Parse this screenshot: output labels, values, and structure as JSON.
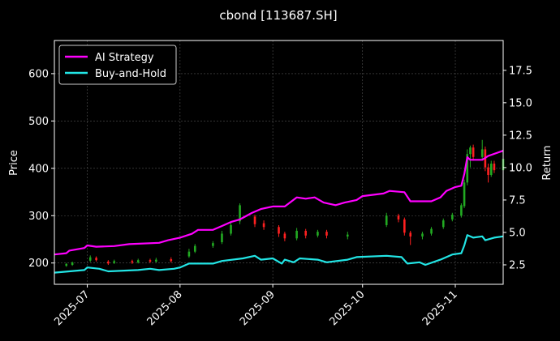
{
  "chart_data": {
    "type": "line",
    "title": "cbond [113687.SH]",
    "ylabel_left": "Price",
    "ylabel_right": "Return",
    "grid": true,
    "legend_position": "top-left",
    "x_range": [
      "2025-06-20",
      "2025-11-17"
    ],
    "x_ticks": [
      "2025-07",
      "2025-08",
      "2025-09",
      "2025-10",
      "2025-11"
    ],
    "x_tick_dates": [
      "2025-07-01",
      "2025-08-01",
      "2025-09-01",
      "2025-10-01",
      "2025-11-01"
    ],
    "y_left": {
      "range": [
        155,
        670
      ],
      "ticks": [
        200,
        300,
        400,
        500,
        600
      ]
    },
    "y_right": {
      "range": [
        1.0,
        19.8
      ],
      "ticks": [
        "2.5",
        "5.0",
        "7.5",
        "10.0",
        "12.5",
        "15.0",
        "17.5"
      ]
    },
    "series": [
      {
        "name": "AI Strategy",
        "color": "#ff00ff",
        "axis": "right",
        "points": [
          [
            "2025-06-20",
            3.3
          ],
          [
            "2025-06-24",
            3.4
          ],
          [
            "2025-06-25",
            3.6
          ],
          [
            "2025-06-30",
            3.8
          ],
          [
            "2025-07-01",
            4.0
          ],
          [
            "2025-07-04",
            3.9
          ],
          [
            "2025-07-10",
            3.95
          ],
          [
            "2025-07-15",
            4.1
          ],
          [
            "2025-07-25",
            4.2
          ],
          [
            "2025-07-28",
            4.4
          ],
          [
            "2025-08-01",
            4.6
          ],
          [
            "2025-08-05",
            4.9
          ],
          [
            "2025-08-07",
            5.2
          ],
          [
            "2025-08-12",
            5.2
          ],
          [
            "2025-08-15",
            5.5
          ],
          [
            "2025-08-18",
            5.8
          ],
          [
            "2025-08-21",
            6.0
          ],
          [
            "2025-08-25",
            6.5
          ],
          [
            "2025-08-28",
            6.8
          ],
          [
            "2025-09-01",
            7.0
          ],
          [
            "2025-09-05",
            7.0
          ],
          [
            "2025-09-09",
            7.7
          ],
          [
            "2025-09-12",
            7.6
          ],
          [
            "2025-09-15",
            7.7
          ],
          [
            "2025-09-18",
            7.3
          ],
          [
            "2025-09-22",
            7.1
          ],
          [
            "2025-09-25",
            7.3
          ],
          [
            "2025-09-29",
            7.5
          ],
          [
            "2025-10-01",
            7.8
          ],
          [
            "2025-10-08",
            8.0
          ],
          [
            "2025-10-10",
            8.2
          ],
          [
            "2025-10-15",
            8.1
          ],
          [
            "2025-10-17",
            7.4
          ],
          [
            "2025-10-24",
            7.4
          ],
          [
            "2025-10-27",
            7.7
          ],
          [
            "2025-10-29",
            8.2
          ],
          [
            "2025-11-01",
            8.5
          ],
          [
            "2025-11-03",
            8.6
          ],
          [
            "2025-11-04",
            9.5
          ],
          [
            "2025-11-05",
            10.8
          ],
          [
            "2025-11-06",
            10.6
          ],
          [
            "2025-11-10",
            10.6
          ],
          [
            "2025-11-12",
            10.9
          ],
          [
            "2025-11-17",
            11.3
          ]
        ]
      },
      {
        "name": "Buy-and-Hold",
        "color": "#22e5e5",
        "axis": "right",
        "points": [
          [
            "2025-06-20",
            1.9
          ],
          [
            "2025-06-25",
            2.0
          ],
          [
            "2025-06-30",
            2.1
          ],
          [
            "2025-07-01",
            2.3
          ],
          [
            "2025-07-05",
            2.2
          ],
          [
            "2025-07-08",
            2.0
          ],
          [
            "2025-07-18",
            2.1
          ],
          [
            "2025-07-22",
            2.2
          ],
          [
            "2025-07-25",
            2.1
          ],
          [
            "2025-07-30",
            2.2
          ],
          [
            "2025-08-01",
            2.3
          ],
          [
            "2025-08-04",
            2.6
          ],
          [
            "2025-08-12",
            2.6
          ],
          [
            "2025-08-15",
            2.8
          ],
          [
            "2025-08-22",
            3.0
          ],
          [
            "2025-08-26",
            3.2
          ],
          [
            "2025-08-28",
            2.9
          ],
          [
            "2025-09-01",
            3.0
          ],
          [
            "2025-09-04",
            2.6
          ],
          [
            "2025-09-05",
            2.9
          ],
          [
            "2025-09-08",
            2.7
          ],
          [
            "2025-09-10",
            3.0
          ],
          [
            "2025-09-16",
            2.9
          ],
          [
            "2025-09-19",
            2.7
          ],
          [
            "2025-09-26",
            2.9
          ],
          [
            "2025-09-29",
            3.1
          ],
          [
            "2025-10-09",
            3.2
          ],
          [
            "2025-10-14",
            3.1
          ],
          [
            "2025-10-16",
            2.6
          ],
          [
            "2025-10-20",
            2.7
          ],
          [
            "2025-10-22",
            2.5
          ],
          [
            "2025-10-27",
            2.9
          ],
          [
            "2025-10-31",
            3.3
          ],
          [
            "2025-11-03",
            3.4
          ],
          [
            "2025-11-04",
            4.0
          ],
          [
            "2025-11-05",
            4.8
          ],
          [
            "2025-11-07",
            4.6
          ],
          [
            "2025-11-10",
            4.7
          ],
          [
            "2025-11-11",
            4.4
          ],
          [
            "2025-11-14",
            4.6
          ],
          [
            "2025-11-17",
            4.7
          ]
        ]
      }
    ],
    "candles": {
      "axis": "left",
      "up_color": "#22aa22",
      "down_color": "#ff2020",
      "items": [
        [
          "2025-06-24",
          194,
          198,
          200,
          192
        ],
        [
          "2025-06-26",
          196,
          201,
          203,
          194
        ],
        [
          "2025-07-02",
          205,
          212,
          216,
          202
        ],
        [
          "2025-07-04",
          211,
          206,
          214,
          203
        ],
        [
          "2025-07-08",
          203,
          199,
          206,
          196
        ],
        [
          "2025-07-10",
          200,
          204,
          207,
          198
        ],
        [
          "2025-07-16",
          204,
          201,
          207,
          198
        ],
        [
          "2025-07-18",
          201,
          206,
          209,
          199
        ],
        [
          "2025-07-22",
          206,
          203,
          209,
          200
        ],
        [
          "2025-07-24",
          203,
          207,
          211,
          201
        ],
        [
          "2025-07-29",
          208,
          204,
          212,
          201
        ],
        [
          "2025-08-04",
          214,
          224,
          230,
          211
        ],
        [
          "2025-08-06",
          224,
          236,
          240,
          221
        ],
        [
          "2025-08-12",
          236,
          242,
          246,
          232
        ],
        [
          "2025-08-15",
          244,
          262,
          268,
          240
        ],
        [
          "2025-08-18",
          262,
          280,
          286,
          258
        ],
        [
          "2025-08-21",
          288,
          322,
          326,
          282
        ],
        [
          "2025-08-26",
          298,
          282,
          302,
          276
        ],
        [
          "2025-08-29",
          284,
          276,
          290,
          270
        ],
        [
          "2025-09-03",
          276,
          262,
          280,
          255
        ],
        [
          "2025-09-05",
          262,
          252,
          266,
          246
        ],
        [
          "2025-09-09",
          252,
          268,
          274,
          248
        ],
        [
          "2025-09-12",
          268,
          258,
          272,
          252
        ],
        [
          "2025-09-16",
          258,
          266,
          270,
          254
        ],
        [
          "2025-09-19",
          266,
          258,
          270,
          252
        ],
        [
          "2025-09-26",
          256,
          260,
          266,
          250
        ],
        [
          "2025-10-09",
          280,
          300,
          306,
          276
        ],
        [
          "2025-10-13",
          300,
          292,
          304,
          286
        ],
        [
          "2025-10-15",
          292,
          264,
          296,
          258
        ],
        [
          "2025-10-17",
          264,
          256,
          268,
          238
        ],
        [
          "2025-10-21",
          256,
          262,
          266,
          250
        ],
        [
          "2025-10-24",
          262,
          272,
          276,
          258
        ],
        [
          "2025-10-28",
          276,
          290,
          294,
          272
        ],
        [
          "2025-10-31",
          292,
          302,
          306,
          288
        ],
        [
          "2025-11-03",
          300,
          322,
          326,
          296
        ],
        [
          "2025-11-04",
          320,
          370,
          376,
          316
        ],
        [
          "2025-11-05",
          370,
          430,
          440,
          364
        ],
        [
          "2025-11-06",
          430,
          444,
          448,
          402
        ],
        [
          "2025-11-07",
          444,
          424,
          450,
          416
        ],
        [
          "2025-11-10",
          424,
          440,
          460,
          418
        ],
        [
          "2025-11-11",
          440,
          402,
          446,
          394
        ],
        [
          "2025-11-12",
          402,
          386,
          410,
          370
        ],
        [
          "2025-11-13",
          386,
          410,
          416,
          382
        ],
        [
          "2025-11-14",
          410,
          396,
          416,
          390
        ],
        [
          "2025-11-17",
          396,
          420,
          430,
          392
        ]
      ]
    }
  }
}
